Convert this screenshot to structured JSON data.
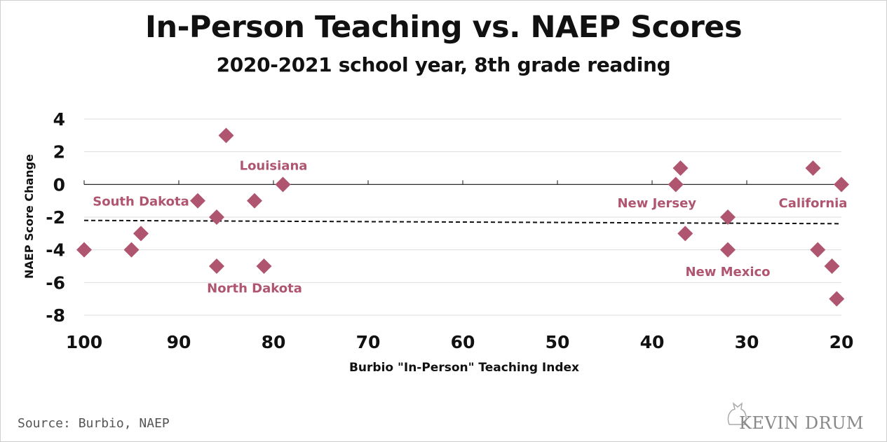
{
  "chart_data": {
    "type": "scatter",
    "title": "In-Person Teaching vs. NAEP Scores",
    "subtitle": "2020-2021 school year, 8th grade reading",
    "xlabel": "Burbio \"In-Person\" Teaching Index",
    "ylabel": "NAEP Score Change",
    "x_reversed": true,
    "xlim": [
      100,
      20
    ],
    "ylim": [
      -8,
      4
    ],
    "x_ticks": [
      100,
      90,
      80,
      70,
      60,
      50,
      40,
      30,
      20
    ],
    "y_ticks": [
      4,
      2,
      0,
      -2,
      -4,
      -6,
      -8
    ],
    "grid": "horizontal",
    "marker": "diamond",
    "colors": {
      "point": "#b05570",
      "label": "#b05570",
      "trend": "#111111",
      "grid": "#dddddd",
      "zero_line": "#111111"
    },
    "points": [
      {
        "x": 100,
        "y": -4
      },
      {
        "x": 95,
        "y": -4
      },
      {
        "x": 94,
        "y": -3
      },
      {
        "x": 88,
        "y": -1
      },
      {
        "x": 86,
        "y": -2
      },
      {
        "x": 86,
        "y": -5
      },
      {
        "x": 85,
        "y": 3
      },
      {
        "x": 82,
        "y": -1
      },
      {
        "x": 81,
        "y": -5
      },
      {
        "x": 79,
        "y": 0
      },
      {
        "x": 37.5,
        "y": 0
      },
      {
        "x": 37,
        "y": 1
      },
      {
        "x": 36.5,
        "y": -3
      },
      {
        "x": 32,
        "y": -2
      },
      {
        "x": 32,
        "y": -4
      },
      {
        "x": 23,
        "y": 1
      },
      {
        "x": 22.5,
        "y": -4
      },
      {
        "x": 21,
        "y": -5
      },
      {
        "x": 20.5,
        "y": -7
      },
      {
        "x": 20,
        "y": 0
      }
    ],
    "annotations": [
      {
        "text": "South Dakota",
        "x": 94,
        "y": -1
      },
      {
        "text": "Louisiana",
        "x": 80,
        "y": 1.2
      },
      {
        "text": "North Dakota",
        "x": 82,
        "y": -6.3
      },
      {
        "text": "New Jersey",
        "x": 39.5,
        "y": -1.1
      },
      {
        "text": "California",
        "x": 23,
        "y": -1.1
      },
      {
        "text": "New Mexico",
        "x": 32,
        "y": -5.3
      }
    ],
    "trend_line": {
      "x": [
        100,
        20
      ],
      "y": [
        -2.2,
        -2.4
      ]
    }
  },
  "source": "Source: Burbio, NAEP",
  "logo_text": "KEVIN DRUM"
}
